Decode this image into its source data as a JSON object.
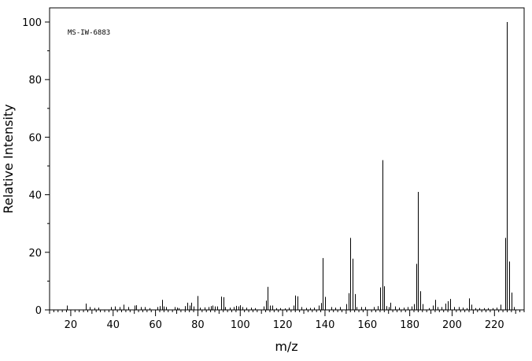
{
  "chart_data": {
    "type": "bar",
    "annotation": "MS-IW-6883",
    "xlabel": "m/z",
    "ylabel": "Relative Intensity",
    "xlim": [
      10,
      234
    ],
    "ylim": [
      0,
      100
    ],
    "xticks": [
      20,
      40,
      60,
      80,
      100,
      120,
      140,
      160,
      180,
      200,
      220
    ],
    "yticks": [
      0,
      20,
      40,
      60,
      80,
      100
    ],
    "grid": false,
    "legend": "none",
    "x": [
      18,
      27,
      29,
      31,
      33,
      39,
      41,
      43,
      45,
      47,
      50,
      51,
      53,
      55,
      57,
      61,
      62,
      63,
      64,
      65,
      69,
      70,
      71,
      74,
      75,
      76,
      77,
      78,
      80,
      81,
      83,
      85,
      86,
      87,
      88,
      89,
      91,
      92,
      93,
      95,
      97,
      98,
      99,
      100,
      101,
      103,
      105,
      107,
      111,
      112,
      113,
      114,
      115,
      117,
      119,
      121,
      123,
      125,
      126,
      127,
      129,
      131,
      133,
      135,
      137,
      138,
      139,
      140,
      143,
      145,
      147,
      150,
      151,
      152,
      153,
      154,
      155,
      157,
      159,
      163,
      165,
      166,
      167,
      168,
      169,
      170,
      171,
      173,
      175,
      177,
      179,
      181,
      182,
      183,
      184,
      185,
      186,
      189,
      191,
      192,
      193,
      195,
      197,
      198,
      199,
      201,
      203,
      205,
      207,
      208,
      209,
      211,
      213,
      215,
      217,
      219,
      221,
      223,
      225,
      226,
      227,
      228,
      229
    ],
    "values": [
      1.5,
      2.2,
      1.0,
      0.7,
      0.8,
      1.0,
      1.2,
      1.0,
      1.8,
      1.0,
      1.5,
      1.6,
      1.0,
      1.0,
      0.6,
      1.0,
      1.3,
      3.5,
      1.2,
      1.0,
      1.0,
      0.8,
      0.6,
      1.3,
      2.5,
      1.5,
      2.5,
      1.2,
      4.8,
      0.8,
      0.9,
      1.0,
      1.3,
      1.5,
      1.2,
      1.2,
      4.6,
      4.4,
      1.0,
      0.8,
      1.0,
      1.4,
      1.2,
      1.6,
      1.0,
      0.8,
      0.8,
      0.6,
      1.2,
      3.2,
      8.0,
      1.5,
      1.5,
      0.6,
      0.6,
      0.5,
      0.8,
      1.5,
      5.0,
      4.7,
      1.0,
      0.7,
      0.7,
      0.8,
      1.5,
      2.4,
      18.0,
      4.5,
      1.0,
      0.8,
      1.0,
      2.0,
      5.8,
      25.0,
      17.8,
      5.5,
      1.0,
      1.0,
      1.0,
      1.0,
      1.3,
      7.8,
      52.0,
      8.2,
      1.3,
      1.0,
      2.5,
      1.2,
      0.8,
      0.8,
      1.0,
      1.2,
      2.0,
      16.0,
      41.0,
      6.5,
      2.0,
      0.6,
      1.5,
      3.5,
      1.0,
      1.0,
      2.2,
      3.0,
      3.8,
      1.0,
      1.0,
      0.8,
      0.6,
      4.0,
      1.8,
      0.6,
      0.6,
      0.6,
      0.6,
      0.6,
      0.8,
      1.8,
      25.0,
      100.0,
      16.8,
      6.0,
      1.0
    ]
  }
}
